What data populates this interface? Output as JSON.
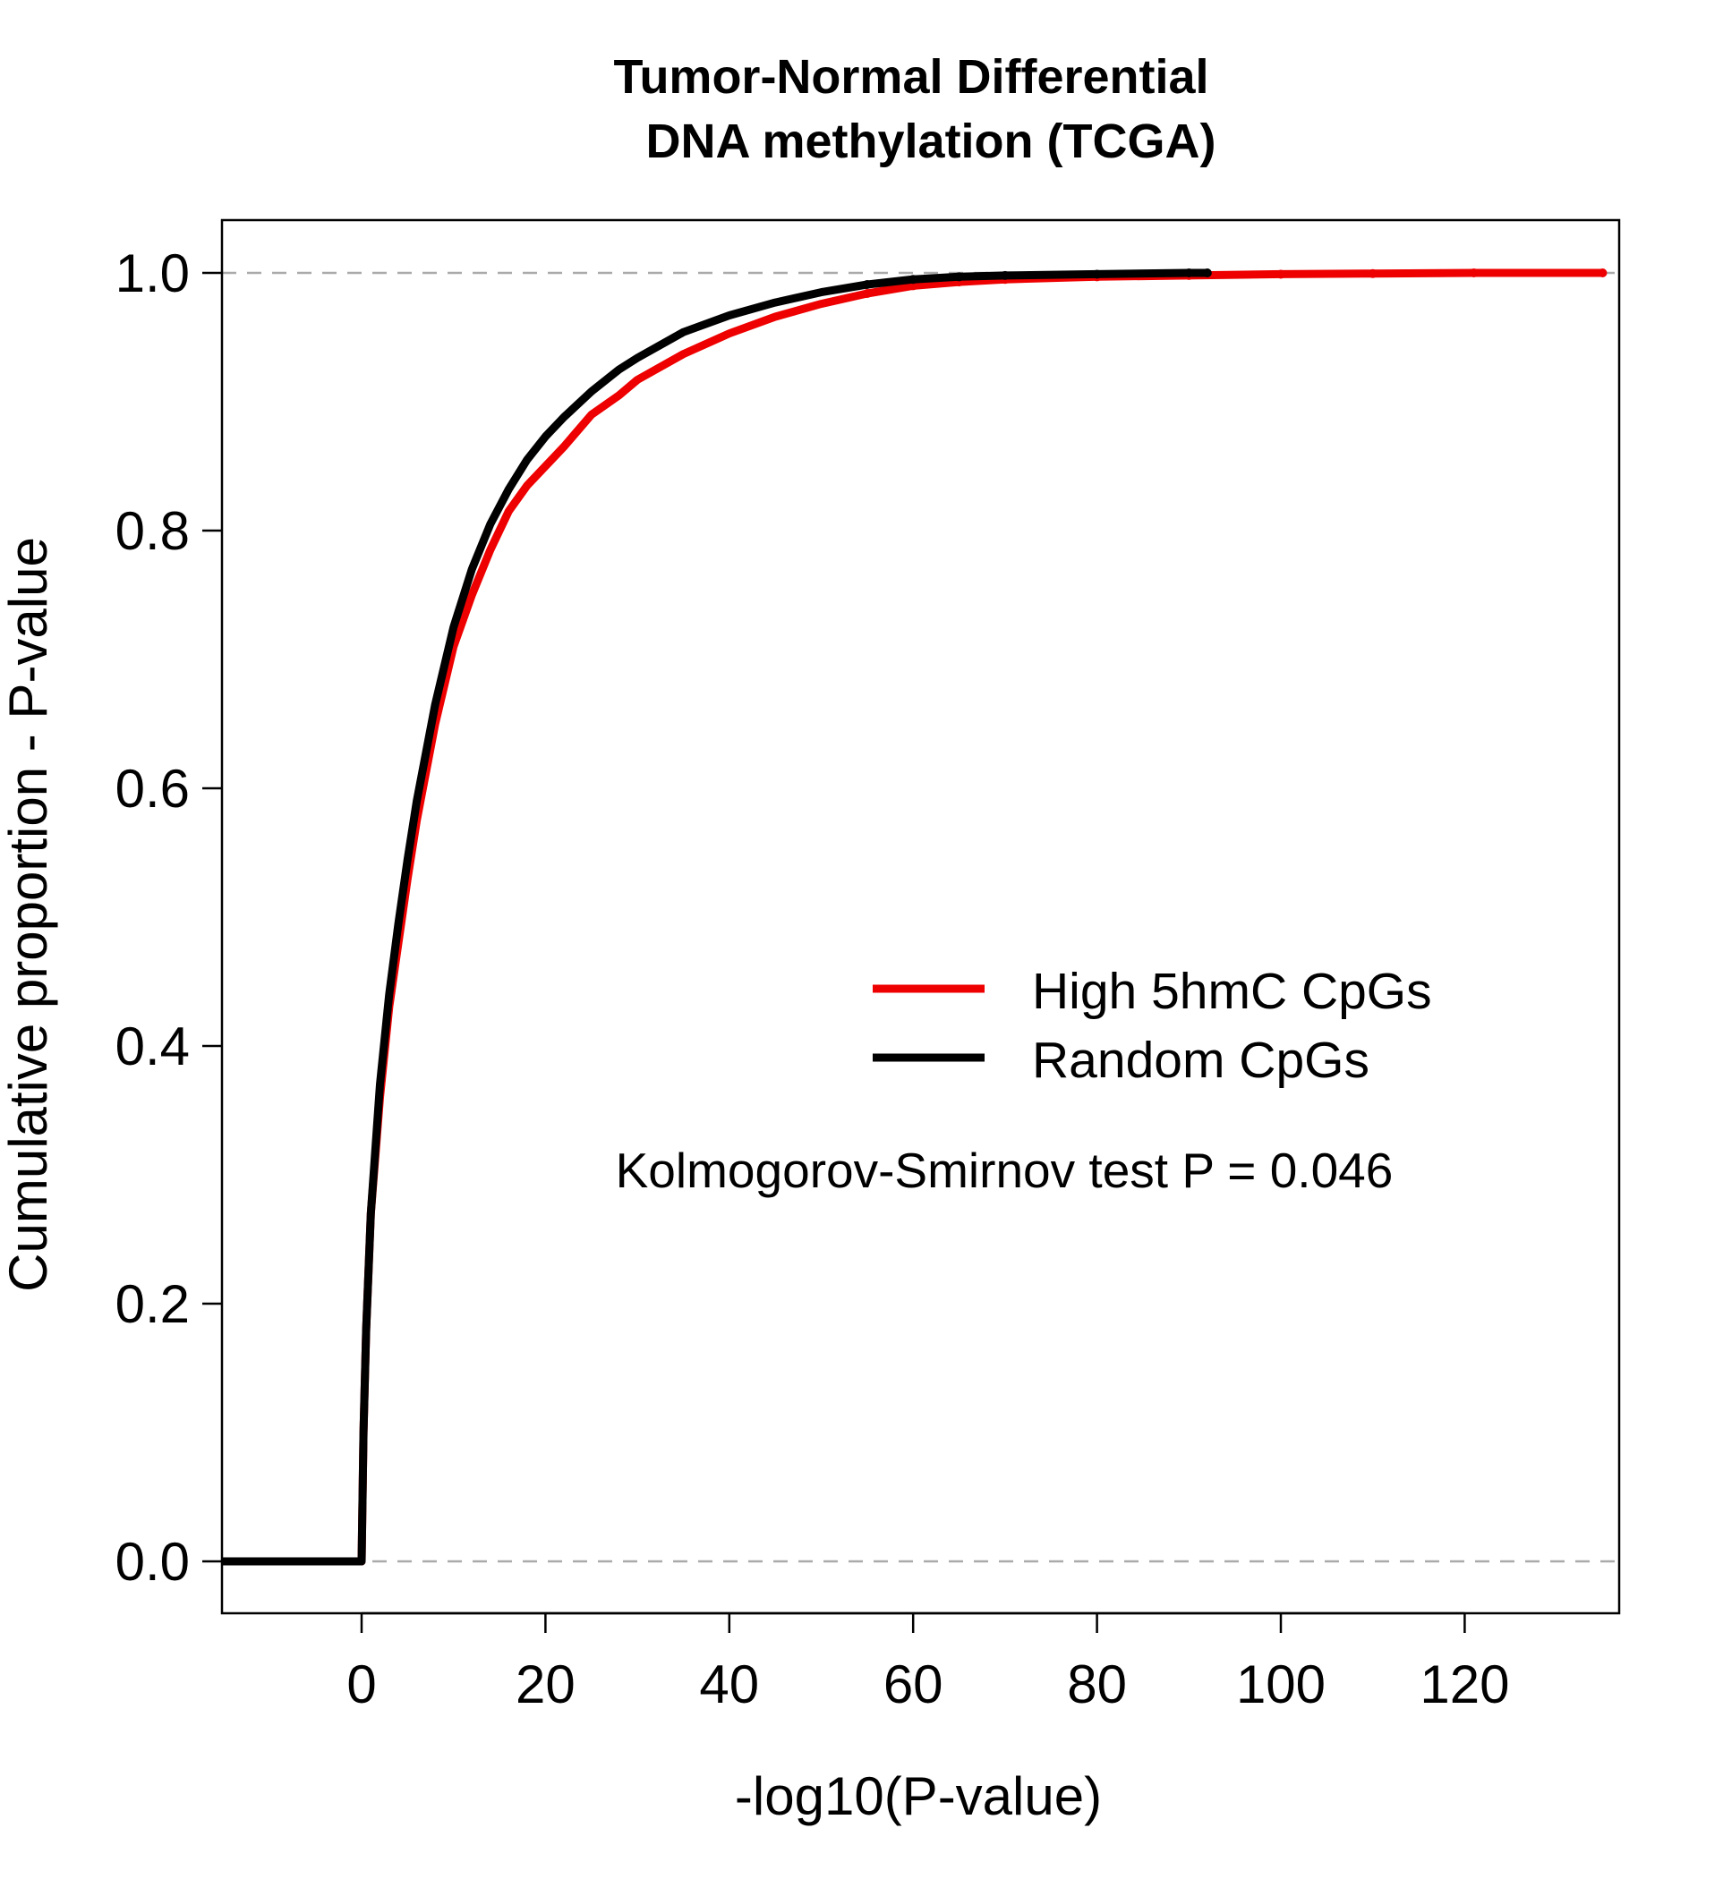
{
  "chart_data": {
    "type": "line",
    "title": [
      "Tumor-Normal Differential",
      "DNA methylation (TCGA)"
    ],
    "xlabel": "-log10(P-value)",
    "ylabel": "Cumulative proportion - P-value",
    "xlim": [
      -15,
      135
    ],
    "ylim": [
      -0.04,
      1.04
    ],
    "xticks": [
      "0",
      "20",
      "40",
      "60",
      "80",
      "100",
      "120"
    ],
    "yticks": [
      "0.0",
      "0.2",
      "0.4",
      "0.6",
      "0.8",
      "1.0"
    ],
    "reference_lines": [
      0,
      1
    ],
    "reference_line_color": "#aaaaaa",
    "grid": false,
    "legend": {
      "position": "center-right"
    },
    "annotation": "Kolmogorov-Smirnov test P = 0.046",
    "series": [
      {
        "name": "High 5hmC CpGs",
        "color": "#ee0000",
        "x": [
          -15,
          0,
          0.2,
          0.5,
          1,
          2,
          3,
          4,
          5,
          6,
          8,
          10,
          12,
          14,
          16,
          18,
          20,
          22,
          25,
          28,
          30,
          35,
          40,
          45,
          50,
          55,
          60,
          65,
          70,
          80,
          90,
          100,
          110,
          121,
          135
        ],
        "y": [
          0,
          0,
          0.1,
          0.18,
          0.27,
          0.36,
          0.43,
          0.48,
          0.53,
          0.575,
          0.65,
          0.71,
          0.75,
          0.785,
          0.815,
          0.835,
          0.85,
          0.865,
          0.89,
          0.905,
          0.917,
          0.937,
          0.953,
          0.966,
          0.976,
          0.984,
          0.99,
          0.993,
          0.995,
          0.997,
          0.998,
          0.999,
          0.9995,
          1.0,
          1.0
        ]
      },
      {
        "name": "Random CpGs",
        "color": "#000000",
        "x": [
          -15,
          0,
          0.2,
          0.5,
          1,
          2,
          3,
          4,
          5,
          6,
          8,
          10,
          12,
          14,
          16,
          18,
          20,
          22,
          25,
          28,
          30,
          35,
          40,
          45,
          50,
          55,
          60,
          65,
          70,
          80,
          90,
          92
        ],
        "y": [
          0,
          0,
          0.1,
          0.18,
          0.27,
          0.37,
          0.44,
          0.495,
          0.545,
          0.59,
          0.665,
          0.725,
          0.77,
          0.805,
          0.832,
          0.855,
          0.873,
          0.888,
          0.908,
          0.925,
          0.934,
          0.954,
          0.967,
          0.977,
          0.985,
          0.991,
          0.995,
          0.997,
          0.998,
          0.999,
          1.0,
          1.0
        ]
      }
    ]
  }
}
